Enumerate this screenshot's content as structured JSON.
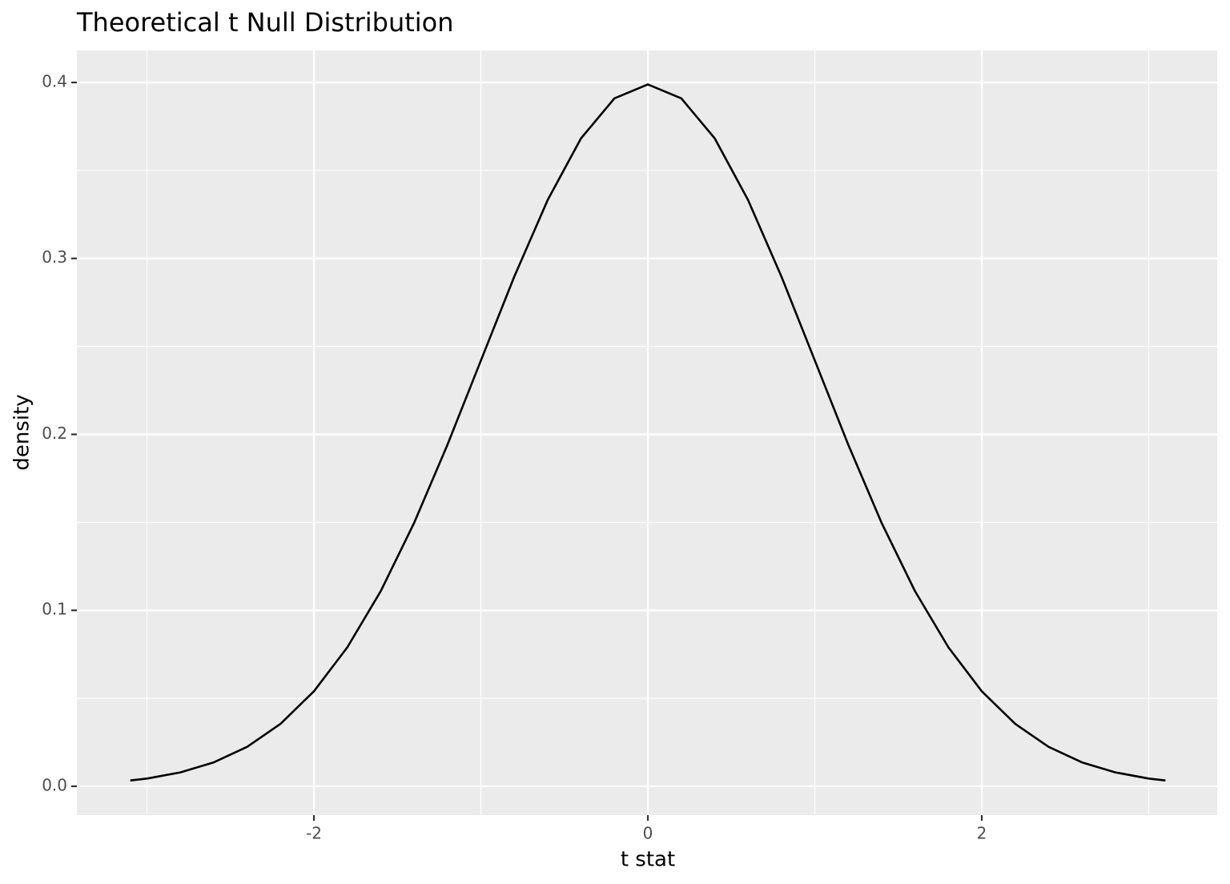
{
  "chart_data": {
    "type": "line",
    "title": "Theoretical t Null Distribution",
    "x_label": "t stat",
    "y_label": "density",
    "x": [
      -3.1,
      -3.0,
      -2.8,
      -2.6,
      -2.4,
      -2.2,
      -2.0,
      -1.8,
      -1.6,
      -1.4,
      -1.2,
      -1.0,
      -0.8,
      -0.6,
      -0.4,
      -0.2,
      0,
      0.2,
      0.4,
      0.6,
      0.8,
      1.0,
      1.2,
      1.4,
      1.6,
      1.8,
      2.0,
      2.2,
      2.4,
      2.6,
      2.8,
      3.0,
      3.1
    ],
    "series": [
      {
        "color": "#000000",
        "values": [
          0.0033,
          0.0044,
          0.0079,
          0.0136,
          0.0224,
          0.0355,
          0.054,
          0.079,
          0.1109,
          0.1497,
          0.1942,
          0.242,
          0.2897,
          0.3332,
          0.3683,
          0.391,
          0.3989,
          0.391,
          0.3683,
          0.3332,
          0.2897,
          0.242,
          0.1942,
          0.1497,
          0.1109,
          0.079,
          0.054,
          0.0355,
          0.0224,
          0.0136,
          0.0079,
          0.0044,
          0.0033
        ]
      }
    ],
    "xlim": [
      -3.42,
      3.41
    ],
    "ylim": [
      -0.0164,
      0.4182
    ],
    "xticks": [
      -2,
      0,
      2
    ],
    "yticks": [
      {
        "value": 0,
        "label": "0.0"
      },
      0.1,
      0.2,
      0.3,
      0.4
    ],
    "x_minor_grid": [
      -3,
      -1,
      1,
      3
    ],
    "y_minor_grid": [
      0.05,
      0.15,
      0.25,
      0.35
    ],
    "grid": true
  }
}
